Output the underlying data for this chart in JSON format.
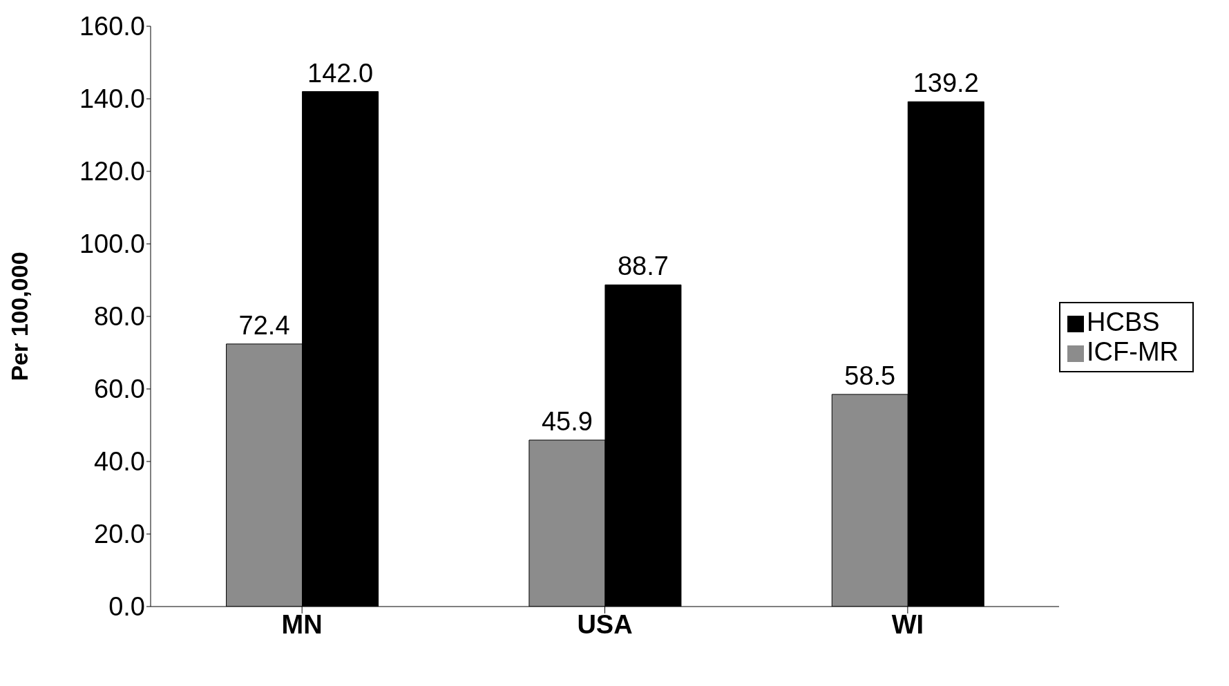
{
  "chart_data": {
    "type": "bar",
    "ylabel": "Per 100,000",
    "categories": [
      "MN",
      "USA",
      "WI"
    ],
    "series": [
      {
        "name": "ICF-MR",
        "color": "#8c8c8c",
        "values": [
          72.4,
          45.9,
          58.5
        ]
      },
      {
        "name": "HCBS",
        "color": "#000000",
        "values": [
          142.0,
          88.7,
          139.2
        ]
      }
    ],
    "value_labels": [
      [
        "72.4",
        "45.9",
        "58.5"
      ],
      [
        "142.0",
        "88.7",
        "139.2"
      ]
    ],
    "ylim": [
      0,
      160
    ],
    "yticks": [
      {
        "value": 0,
        "label": "0.0"
      },
      {
        "value": 20,
        "label": "20.0"
      },
      {
        "value": 40,
        "label": "40.0"
      },
      {
        "value": 60,
        "label": "60.0"
      },
      {
        "value": 80,
        "label": "80.0"
      },
      {
        "value": 100,
        "label": "100.0"
      },
      {
        "value": 120,
        "label": "120.0"
      },
      {
        "value": 140,
        "label": "140.0"
      },
      {
        "value": 160,
        "label": "160.0"
      }
    ],
    "grid": false,
    "legend": "right"
  }
}
